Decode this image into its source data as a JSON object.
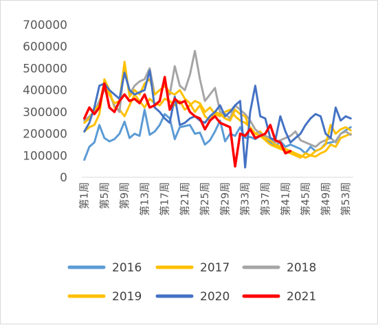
{
  "chart_data": {
    "type": "line",
    "title": "",
    "xlabel": "",
    "ylabel": "",
    "ylim": [
      0,
      700000
    ],
    "yticks": [
      0,
      100000,
      200000,
      300000,
      400000,
      500000,
      600000,
      700000
    ],
    "ytick_labels": [
      "0",
      "100000",
      "200000",
      "300000",
      "400000",
      "500000",
      "600000",
      "700000"
    ],
    "xtick_labels": [
      "第1周",
      "第5周",
      "第9周",
      "第13周",
      "第17周",
      "第21周",
      "第25周",
      "第29周",
      "第33周",
      "第37周",
      "第41周",
      "第45周",
      "第49周",
      "第53周"
    ],
    "legend_position": "bottom",
    "grid": false,
    "series": [
      {
        "name": "2016",
        "color": "#5b9bd5",
        "values": [
          80000,
          140000,
          160000,
          240000,
          180000,
          165000,
          175000,
          200000,
          255000,
          180000,
          200000,
          190000,
          310000,
          195000,
          210000,
          240000,
          290000,
          270000,
          175000,
          230000,
          235000,
          240000,
          200000,
          205000,
          150000,
          170000,
          210000,
          260000,
          165000,
          200000,
          190000,
          230000,
          180000,
          185000,
          175000,
          190000,
          180000,
          160000,
          140000,
          165000,
          140000,
          150000,
          140000,
          130000,
          110000,
          140000,
          120000,
          130000,
          155000,
          160000,
          165000,
          200000,
          215000,
          230000
        ]
      },
      {
        "name": "2017",
        "color": "#ffc000",
        "values": [
          210000,
          230000,
          240000,
          290000,
          450000,
          400000,
          320000,
          310000,
          280000,
          330000,
          380000,
          350000,
          320000,
          360000,
          340000,
          330000,
          360000,
          350000,
          330000,
          350000,
          310000,
          330000,
          350000,
          340000,
          300000,
          320000,
          290000,
          280000,
          300000,
          310000,
          280000,
          260000,
          250000,
          230000,
          200000,
          210000,
          180000,
          170000,
          150000,
          140000,
          130000,
          120000,
          110000,
          100000,
          90000,
          100000,
          95000,
          110000,
          120000,
          150000,
          140000,
          180000,
          190000,
          200000
        ]
      },
      {
        "name": "2018",
        "color": "#a5a5a5",
        "values": [
          260000,
          280000,
          300000,
          350000,
          400000,
          380000,
          330000,
          300000,
          520000,
          380000,
          420000,
          440000,
          450000,
          500000,
          380000,
          400000,
          420000,
          380000,
          510000,
          420000,
          400000,
          470000,
          580000,
          450000,
          350000,
          380000,
          410000,
          300000,
          290000,
          270000,
          330000,
          310000,
          290000,
          260000,
          220000,
          200000,
          190000,
          180000,
          160000,
          170000,
          180000,
          190000,
          210000,
          170000,
          160000,
          150000,
          140000,
          160000,
          170000,
          180000,
          160000,
          200000,
          210000,
          195000
        ]
      },
      {
        "name": "2019",
        "color": "#ffc000",
        "values": [
          250000,
          270000,
          310000,
          330000,
          440000,
          380000,
          340000,
          350000,
          530000,
          370000,
          400000,
          380000,
          430000,
          450000,
          380000,
          400000,
          420000,
          390000,
          380000,
          400000,
          360000,
          340000,
          300000,
          330000,
          280000,
          260000,
          300000,
          290000,
          270000,
          260000,
          310000,
          290000,
          280000,
          220000,
          200000,
          190000,
          170000,
          150000,
          140000,
          130000,
          120000,
          110000,
          100000,
          90000,
          110000,
          100000,
          120000,
          130000,
          150000,
          240000,
          200000,
          220000,
          230000,
          215000
        ]
      },
      {
        "name": "2020",
        "color": "#4472c4",
        "values": [
          210000,
          250000,
          320000,
          420000,
          430000,
          400000,
          380000,
          360000,
          480000,
          400000,
          380000,
          390000,
          400000,
          490000,
          320000,
          300000,
          270000,
          250000,
          370000,
          240000,
          250000,
          270000,
          280000,
          260000,
          250000,
          280000,
          300000,
          330000,
          280000,
          300000,
          330000,
          350000,
          45000,
          300000,
          420000,
          280000,
          270000,
          180000,
          170000,
          280000,
          210000,
          160000,
          180000,
          200000,
          240000,
          270000,
          290000,
          280000,
          200000,
          180000,
          320000,
          260000,
          280000,
          270000
        ]
      },
      {
        "name": "2021",
        "color": "#ff0000",
        "values": [
          270000,
          320000,
          290000,
          320000,
          430000,
          320000,
          300000,
          350000,
          380000,
          350000,
          360000,
          340000,
          380000,
          320000,
          330000,
          350000,
          460000,
          310000,
          360000,
          340000,
          350000,
          300000,
          280000,
          270000,
          220000,
          260000,
          280000,
          250000,
          240000,
          230000,
          50000,
          200000,
          190000,
          220000,
          180000,
          190000,
          200000,
          240000,
          170000,
          160000,
          110000,
          120000
        ]
      }
    ]
  }
}
